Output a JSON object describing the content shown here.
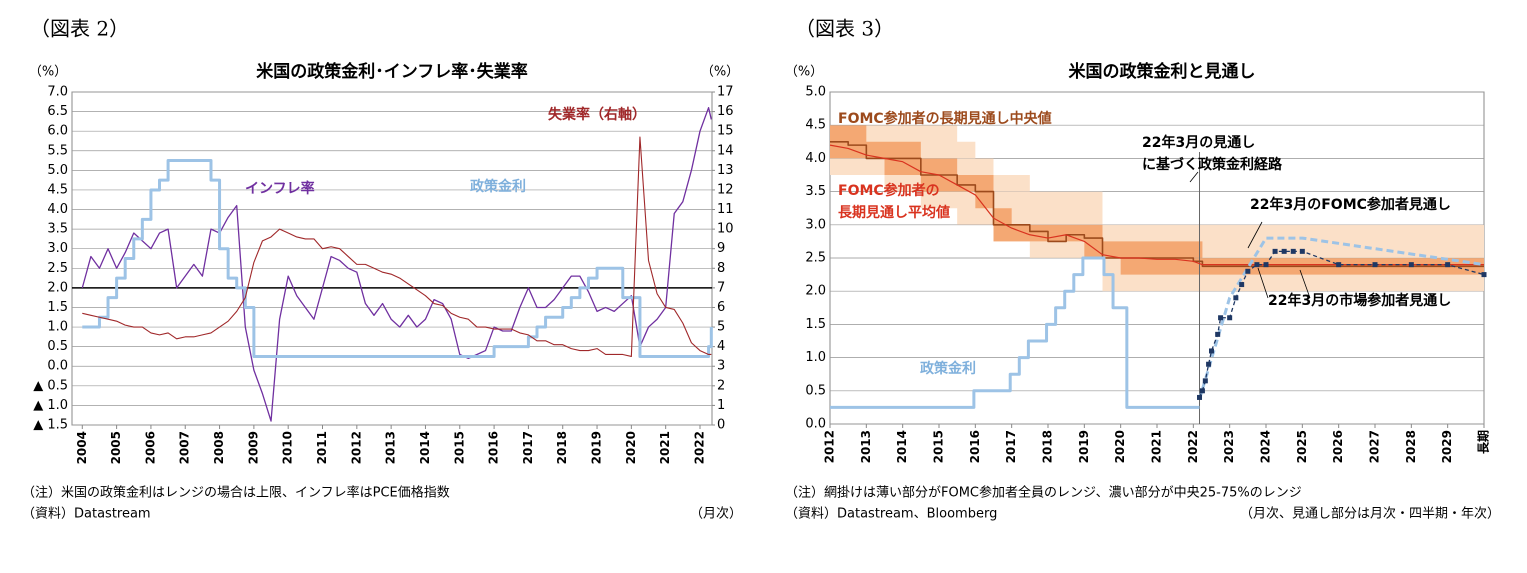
{
  "chart_data": [
    {
      "type": "line",
      "label": "（図表 2）",
      "title": "米国の政策金利･インフレ率･失業率",
      "y_unit": "（%）",
      "notes": [
        "（注）米国の政策金利はレンジの場合は上限、インフレ率はPCE価格指数",
        "（資料）Datastream"
      ],
      "frequency": "（月次）",
      "xlim": [
        2003.7,
        2022.35
      ],
      "xticks": [
        2004,
        2005,
        2006,
        2007,
        2008,
        2009,
        2010,
        2011,
        2012,
        2013,
        2014,
        2015,
        2016,
        2017,
        2018,
        2019,
        2020,
        2021,
        2022
      ],
      "ylim": [
        -1.5,
        7
      ],
      "yticks": [
        {
          "value": -1.5,
          "label": "▲ 1.5"
        },
        {
          "value": -1,
          "label": "▲ 1.0"
        },
        {
          "value": -0.5,
          "label": "▲ 0.5"
        },
        {
          "value": 0,
          "label": "0.0"
        },
        0.5,
        {
          "value": 1,
          "label": "1.0"
        },
        1.5,
        {
          "value": 2,
          "label": "2.0"
        },
        2.5,
        {
          "value": 3,
          "label": "3.0"
        },
        3.5,
        {
          "value": 4,
          "label": "4.0"
        },
        4.5,
        {
          "value": 5,
          "label": "5.0"
        },
        5.5,
        {
          "value": 6,
          "label": "6.0"
        },
        6.5,
        {
          "value": 7,
          "label": "7.0"
        }
      ],
      "y2lim": [
        0,
        17
      ],
      "y2ticks": [
        0,
        1,
        2,
        3,
        4,
        5,
        6,
        7,
        8,
        9,
        10,
        11,
        12,
        13,
        14,
        15,
        16,
        17
      ],
      "grid": true,
      "reference_line": 2,
      "x": [
        2004,
        2004.25,
        2004.5,
        2004.75,
        2005,
        2005.25,
        2005.5,
        2005.75,
        2006,
        2006.25,
        2006.5,
        2006.75,
        2007,
        2007.25,
        2007.5,
        2007.75,
        2008,
        2008.25,
        2008.5,
        2008.75,
        2009,
        2009.25,
        2009.5,
        2009.75,
        2010,
        2010.25,
        2010.5,
        2010.75,
        2011,
        2011.25,
        2011.5,
        2011.75,
        2012,
        2012.25,
        2012.5,
        2012.75,
        2013,
        2013.25,
        2013.5,
        2013.75,
        2014,
        2014.25,
        2014.5,
        2014.75,
        2015,
        2015.25,
        2015.5,
        2015.75,
        2016,
        2016.25,
        2016.5,
        2016.75,
        2017,
        2017.25,
        2017.5,
        2017.75,
        2018,
        2018.25,
        2018.5,
        2018.75,
        2019,
        2019.25,
        2019.5,
        2019.75,
        2020,
        2020.25,
        2020.5,
        2020.75,
        2021,
        2021.25,
        2021.5,
        2021.75,
        2022,
        2022.25,
        2022.33
      ],
      "series": [
        {
          "name": "インフレ率",
          "color": "#7030a0",
          "width": 1.3,
          "step": false,
          "values": [
            2.0,
            2.8,
            2.5,
            3.0,
            2.5,
            2.9,
            3.4,
            3.2,
            3.0,
            3.4,
            3.5,
            2.0,
            2.3,
            2.6,
            2.3,
            3.5,
            3.4,
            3.8,
            4.1,
            1.0,
            -0.1,
            -0.7,
            -1.4,
            1.2,
            2.3,
            1.8,
            1.5,
            1.2,
            2.0,
            2.8,
            2.7,
            2.5,
            2.4,
            1.6,
            1.3,
            1.6,
            1.2,
            1.0,
            1.3,
            1.0,
            1.2,
            1.7,
            1.6,
            1.2,
            0.3,
            0.2,
            0.3,
            0.4,
            1.0,
            0.9,
            0.9,
            1.5,
            2.0,
            1.5,
            1.5,
            1.7,
            2.0,
            2.3,
            2.3,
            1.9,
            1.4,
            1.5,
            1.4,
            1.6,
            1.8,
            0.5,
            1.0,
            1.2,
            1.5,
            3.9,
            4.2,
            5.0,
            6.0,
            6.6,
            6.3
          ]
        },
        {
          "name": "政策金利",
          "color": "#9dc3e6",
          "width": 3,
          "step": true,
          "values": [
            1.0,
            1.0,
            1.25,
            1.75,
            2.25,
            2.75,
            3.25,
            3.75,
            4.5,
            4.75,
            5.25,
            5.25,
            5.25,
            5.25,
            5.25,
            4.75,
            3.0,
            2.25,
            2.0,
            1.5,
            0.25,
            0.25,
            0.25,
            0.25,
            0.25,
            0.25,
            0.25,
            0.25,
            0.25,
            0.25,
            0.25,
            0.25,
            0.25,
            0.25,
            0.25,
            0.25,
            0.25,
            0.25,
            0.25,
            0.25,
            0.25,
            0.25,
            0.25,
            0.25,
            0.25,
            0.25,
            0.25,
            0.25,
            0.5,
            0.5,
            0.5,
            0.5,
            0.75,
            1.0,
            1.25,
            1.25,
            1.5,
            1.75,
            2.0,
            2.25,
            2.5,
            2.5,
            2.5,
            1.75,
            1.75,
            0.25,
            0.25,
            0.25,
            0.25,
            0.25,
            0.25,
            0.25,
            0.25,
            0.5,
            1.0
          ]
        },
        {
          "name": "失業率（右軸）",
          "color": "#a0282a",
          "width": 1.1,
          "step": false,
          "axis": "y2",
          "values": [
            5.7,
            5.6,
            5.5,
            5.4,
            5.3,
            5.1,
            5.0,
            5.0,
            4.7,
            4.6,
            4.7,
            4.4,
            4.5,
            4.5,
            4.6,
            4.7,
            5.0,
            5.3,
            5.8,
            6.5,
            8.3,
            9.4,
            9.6,
            10.0,
            9.8,
            9.6,
            9.5,
            9.5,
            9.0,
            9.1,
            9.0,
            8.6,
            8.2,
            8.2,
            8.0,
            7.8,
            7.7,
            7.5,
            7.2,
            6.9,
            6.6,
            6.2,
            6.1,
            5.7,
            5.5,
            5.4,
            5.0,
            5.0,
            4.9,
            4.9,
            4.9,
            4.7,
            4.6,
            4.3,
            4.3,
            4.1,
            4.1,
            3.9,
            3.8,
            3.8,
            3.9,
            3.6,
            3.6,
            3.6,
            3.5,
            14.7,
            8.4,
            6.7,
            6.0,
            5.9,
            5.2,
            4.2,
            3.8,
            3.6,
            3.6
          ]
        }
      ]
    },
    {
      "type": "line",
      "label": "（図表 3）",
      "title": "米国の政策金利と見通し",
      "y_unit": "（%）",
      "notes": [
        "（注）網掛けは薄い部分がFOMC参加者全員のレンジ、濃い部分が中央25-75%のレンジ",
        "（資料）Datastream、Bloomberg"
      ],
      "frequency": "（月次、見通し部分は月次・四半期・年次）",
      "xlim": [
        2012,
        2030
      ],
      "xticks": [
        2012,
        2013,
        2014,
        2015,
        2016,
        2017,
        2018,
        2019,
        2020,
        2021,
        2022,
        2023,
        2024,
        2025,
        2026,
        2027,
        2028,
        2029,
        {
          "value": 2030,
          "label": "長期"
        }
      ],
      "ylim": [
        0,
        5
      ],
      "yticks": [
        {
          "value": 0,
          "label": "0.0"
        },
        0.5,
        {
          "value": 1,
          "label": "1.0"
        },
        1.5,
        {
          "value": 2,
          "label": "2.0"
        },
        2.5,
        {
          "value": 3,
          "label": "3.0"
        },
        3.5,
        {
          "value": 4,
          "label": "4.0"
        },
        4.5,
        {
          "value": 5,
          "label": "5.0"
        }
      ],
      "grid": true,
      "divider_x": 2022.17,
      "annotation": "22年3月の見通し\nに基づく政策金利経路",
      "x": [
        2012,
        2012.5,
        2013,
        2013.5,
        2014,
        2014.5,
        2015,
        2015.5,
        2016,
        2016.5,
        2017,
        2017.5,
        2018,
        2018.5,
        2019,
        2019.5,
        2020,
        2020.5,
        2021,
        2021.5,
        2022,
        2022.25,
        2030
      ],
      "bands": [
        {
          "color": "#fbe0c8",
          "upper": [
            4.5,
            4.5,
            4.5,
            4.5,
            4.5,
            4.5,
            4.5,
            4.25,
            4.0,
            3.75,
            3.75,
            3.5,
            3.5,
            3.5,
            3.5,
            3.0,
            3.0,
            3.0,
            3.0,
            3.0,
            3.0,
            3.0,
            3.0
          ],
          "lower": [
            3.75,
            3.75,
            3.75,
            3.5,
            3.5,
            3.25,
            3.25,
            3.0,
            3.0,
            2.75,
            2.75,
            2.5,
            2.5,
            2.5,
            2.5,
            2.0,
            2.0,
            2.0,
            2.0,
            2.0,
            2.0,
            2.0,
            2.0
          ]
        },
        {
          "color": "#f4a873",
          "upper": [
            4.5,
            4.5,
            4.25,
            4.25,
            4.25,
            4.0,
            4.0,
            3.75,
            3.75,
            3.25,
            3.0,
            3.0,
            3.0,
            3.0,
            3.0,
            2.75,
            2.75,
            2.75,
            2.75,
            2.75,
            2.75,
            2.5,
            2.5
          ],
          "lower": [
            4.0,
            4.0,
            4.0,
            3.75,
            3.75,
            3.5,
            3.5,
            3.5,
            3.25,
            2.75,
            2.75,
            2.75,
            2.75,
            2.75,
            2.5,
            2.5,
            2.25,
            2.25,
            2.25,
            2.25,
            2.25,
            2.25,
            2.25
          ]
        }
      ],
      "series": [
        {
          "name": "FOMC参加者の長期見通し中央値",
          "color": "#9c4a1c",
          "width": 1.6,
          "step": true,
          "values": [
            4.25,
            4.2,
            4.0,
            4.0,
            4.0,
            3.75,
            3.75,
            3.6,
            3.5,
            3.0,
            3.0,
            2.9,
            2.75,
            2.85,
            2.8,
            2.5,
            2.5,
            2.5,
            2.5,
            2.5,
            2.45,
            2.375,
            2.375
          ]
        },
        {
          "name": "FOMC参加者の\n長期見通し平均値",
          "color": "#d9331f",
          "width": 1.2,
          "step": false,
          "values": [
            4.2,
            4.15,
            4.05,
            4.0,
            3.95,
            3.8,
            3.75,
            3.6,
            3.45,
            3.1,
            2.95,
            2.85,
            2.8,
            2.85,
            2.75,
            2.55,
            2.5,
            2.5,
            2.48,
            2.48,
            2.45,
            2.4,
            2.4
          ]
        },
        {
          "name": "政策金利",
          "color": "#9dc3e6",
          "width": 3,
          "step": true,
          "x": [
            2012,
            2015.96,
            2016.96,
            2017.21,
            2017.46,
            2017.96,
            2018.21,
            2018.46,
            2018.71,
            2018.96,
            2019.54,
            2019.79,
            2020.17,
            2022.17
          ],
          "values": [
            0.25,
            0.5,
            0.75,
            1.0,
            1.25,
            1.5,
            1.75,
            2.0,
            2.25,
            2.5,
            2.25,
            1.75,
            0.25,
            0.25
          ]
        },
        {
          "name": "22年3月のFOMC参加者見通し",
          "color": "#9dc3e6",
          "width": 3,
          "step": false,
          "dash": "7 4",
          "x": [
            2022.17,
            2023,
            2024,
            2025,
            2030
          ],
          "values": [
            0.375,
            1.9,
            2.8,
            2.8,
            2.4
          ]
        },
        {
          "name": "22年3月の市場参加者見通し",
          "color": "#1f3864",
          "width": 1.3,
          "step": false,
          "dash": "4 3",
          "markers": true,
          "x": [
            2022.17,
            2022.25,
            2022.33,
            2022.42,
            2022.5,
            2022.67,
            2022.75,
            2023,
            2023.17,
            2023.33,
            2023.5,
            2023.75,
            2024,
            2024.25,
            2024.5,
            2024.75,
            2025,
            2026,
            2027,
            2028,
            2029,
            2030
          ],
          "values": [
            0.4,
            0.5,
            0.65,
            0.9,
            1.1,
            1.35,
            1.6,
            1.6,
            1.9,
            2.1,
            2.3,
            2.4,
            2.4,
            2.6,
            2.6,
            2.6,
            2.6,
            2.4,
            2.4,
            2.4,
            2.4,
            2.25
          ]
        }
      ]
    }
  ]
}
